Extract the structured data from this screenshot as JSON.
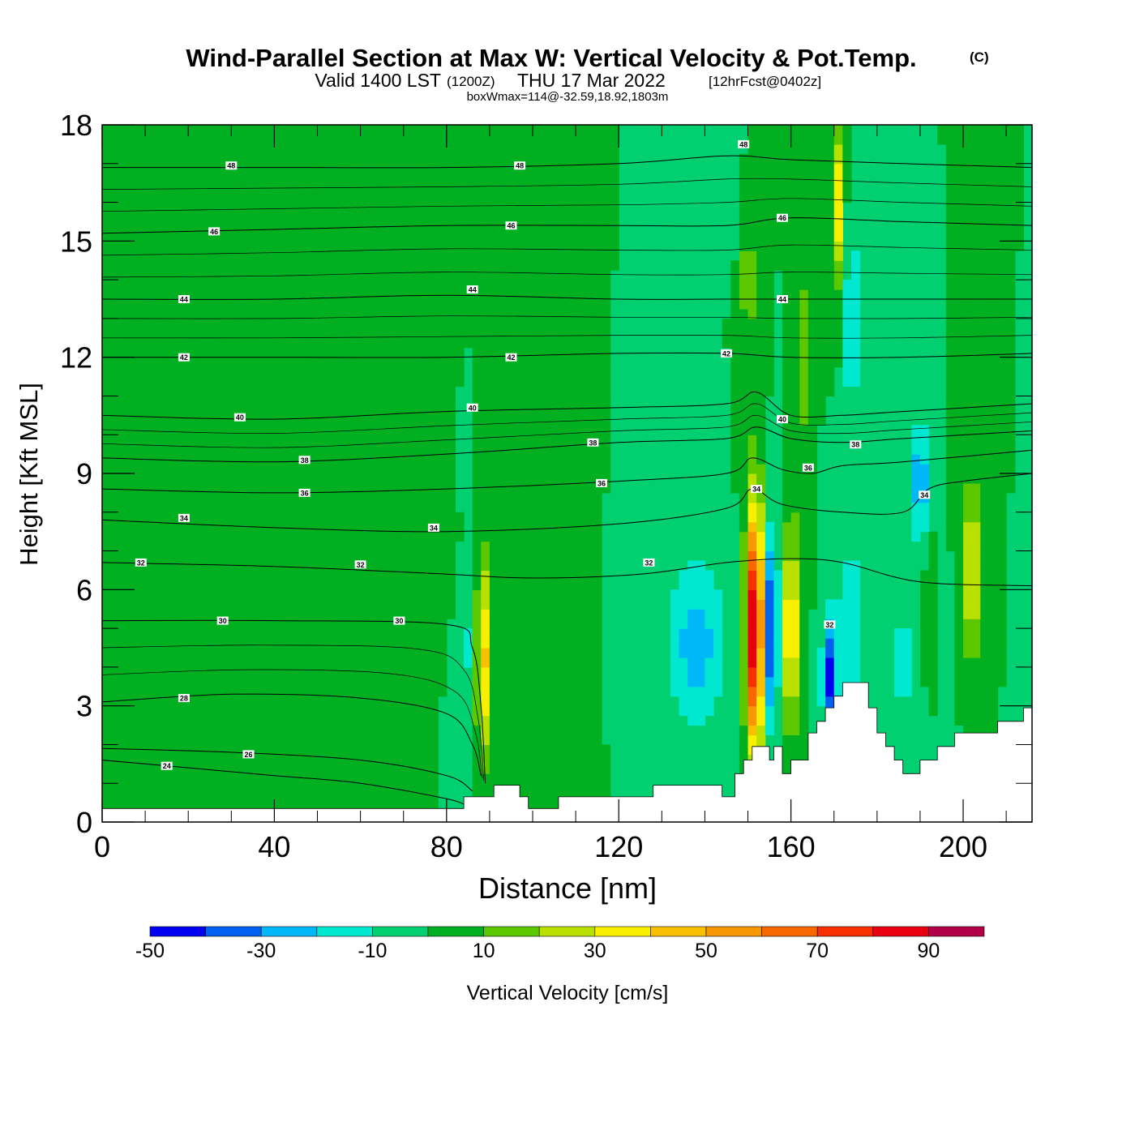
{
  "header": {
    "title": "Wind-Parallel Section at Max W: Vertical Velocity & Pot.Temp.",
    "copyright": "(C)",
    "valid_main": "Valid 1400 LST",
    "valid_zulu": "(1200Z)",
    "valid_date": "THU 17 Mar 2022",
    "forecast": "[12hrFcst@0402z]",
    "box_info": "boxWmax=114@-32.59,18.92,1803m"
  },
  "chart_data": {
    "type": "contour",
    "title": "Wind-Parallel Section at Max W: Vertical Velocity & Pot.Temp.",
    "xlabel": "Distance [nm]",
    "ylabel": "Height [Kft MSL]",
    "xlim": [
      0,
      216
    ],
    "ylim": [
      0,
      18
    ],
    "x_ticks": [
      0,
      40,
      80,
      120,
      160,
      200
    ],
    "y_ticks": [
      0,
      3,
      6,
      9,
      12,
      15,
      18
    ],
    "background_w_cms": 0,
    "w_features_cms": [
      {
        "x": 88.5,
        "y": 4.2,
        "halfwidth": 1.5,
        "halfheight": 2.6,
        "w": 45
      },
      {
        "x": 84.5,
        "y": 4.5,
        "halfwidth": 1.6,
        "halfheight": 2.2,
        "w": -12
      },
      {
        "x": 110,
        "y": 4.0,
        "halfwidth": 2.5,
        "halfheight": 3.0,
        "w": 3
      },
      {
        "x": 138,
        "y": 4.6,
        "halfwidth": 7.0,
        "halfheight": 2.2,
        "w": -25
      },
      {
        "x": 151.5,
        "y": 5.0,
        "halfwidth": 2.0,
        "halfheight": 3.2,
        "w": 95
      },
      {
        "x": 155.5,
        "y": 5.0,
        "halfwidth": 1.4,
        "halfheight": 2.5,
        "w": -48
      },
      {
        "x": 160,
        "y": 5.0,
        "halfwidth": 1.6,
        "halfheight": 2.6,
        "w": 48
      },
      {
        "x": 169,
        "y": 3.8,
        "halfwidth": 1.8,
        "halfheight": 1.6,
        "w": -42
      },
      {
        "x": 174,
        "y": 5.2,
        "halfwidth": 3.5,
        "halfheight": 2.4,
        "w": -16
      },
      {
        "x": 186,
        "y": 4.2,
        "halfwidth": 7.0,
        "halfheight": 2.2,
        "w": -12
      },
      {
        "x": 192,
        "y": 5.0,
        "halfwidth": 1.4,
        "halfheight": 2.0,
        "w": 18
      },
      {
        "x": 202,
        "y": 6.5,
        "halfwidth": 2.2,
        "halfheight": 2.2,
        "w": 35
      },
      {
        "x": 190,
        "y": 8.8,
        "halfwidth": 2.2,
        "halfheight": 1.6,
        "w": -28
      },
      {
        "x": 171,
        "y": 16.0,
        "halfwidth": 1.4,
        "halfheight": 2.0,
        "w": 38
      },
      {
        "x": 174,
        "y": 13.0,
        "halfwidth": 1.6,
        "halfheight": 3.0,
        "w": -20
      },
      {
        "x": 150,
        "y": 14.0,
        "halfwidth": 1.4,
        "halfheight": 3.0,
        "w": 18
      },
      {
        "x": 147,
        "y": 17.0,
        "halfwidth": 2.0,
        "halfheight": 1.2,
        "w": -10
      },
      {
        "x": 163,
        "y": 12.0,
        "halfwidth": 1.4,
        "halfheight": 4.0,
        "w": 12
      },
      {
        "x": 8,
        "y": 12.0,
        "halfwidth": 10.0,
        "halfheight": 5.0,
        "w": 6
      },
      {
        "x": 30,
        "y": 8.0,
        "halfwidth": 20.0,
        "halfheight": 2.0,
        "w": 6
      },
      {
        "x": 70,
        "y": 7.0,
        "halfwidth": 10.0,
        "halfheight": 1.0,
        "w": 6
      }
    ],
    "terrain_top_kft": [
      [
        0,
        0.35
      ],
      [
        84,
        0.35
      ],
      [
        84,
        0.65
      ],
      [
        91,
        0.65
      ],
      [
        91,
        0.95
      ],
      [
        97,
        0.95
      ],
      [
        97,
        0.65
      ],
      [
        99,
        0.65
      ],
      [
        99,
        0.35
      ],
      [
        106,
        0.35
      ],
      [
        106,
        0.65
      ],
      [
        128,
        0.65
      ],
      [
        128,
        0.95
      ],
      [
        144,
        0.95
      ],
      [
        144,
        0.65
      ],
      [
        147,
        0.65
      ],
      [
        147,
        1.25
      ],
      [
        149,
        1.25
      ],
      [
        149,
        1.6
      ],
      [
        151,
        1.6
      ],
      [
        151,
        1.95
      ],
      [
        155,
        1.95
      ],
      [
        155,
        1.6
      ],
      [
        156,
        1.6
      ],
      [
        156,
        1.95
      ],
      [
        158,
        1.95
      ],
      [
        158,
        1.25
      ],
      [
        160,
        1.25
      ],
      [
        160,
        1.6
      ],
      [
        162,
        1.6
      ],
      [
        162,
        1.6
      ],
      [
        164,
        1.6
      ],
      [
        164,
        2.3
      ],
      [
        166,
        2.3
      ],
      [
        166,
        2.6
      ],
      [
        168,
        2.6
      ],
      [
        168,
        2.95
      ],
      [
        170,
        2.95
      ],
      [
        170,
        3.25
      ],
      [
        172,
        3.25
      ],
      [
        172,
        3.6
      ],
      [
        178,
        3.6
      ],
      [
        178,
        2.95
      ],
      [
        180,
        2.95
      ],
      [
        180,
        2.3
      ],
      [
        182,
        2.3
      ],
      [
        182,
        1.95
      ],
      [
        184,
        1.95
      ],
      [
        184,
        1.6
      ],
      [
        186,
        1.6
      ],
      [
        186,
        1.25
      ],
      [
        190,
        1.25
      ],
      [
        190,
        1.6
      ],
      [
        194,
        1.6
      ],
      [
        194,
        1.95
      ],
      [
        198,
        1.95
      ],
      [
        198,
        2.3
      ],
      [
        208,
        2.3
      ],
      [
        208,
        2.6
      ],
      [
        214,
        2.6
      ],
      [
        214,
        2.95
      ],
      [
        216,
        2.95
      ]
    ],
    "theta_isentropes": [
      {
        "label": "24",
        "points": [
          [
            0,
            1.6
          ],
          [
            20,
            1.4
          ],
          [
            40,
            1.2
          ],
          [
            60,
            1.0
          ],
          [
            80,
            0.6
          ],
          [
            85,
            0.4
          ]
        ]
      },
      {
        "label": "26",
        "points": [
          [
            0,
            1.9
          ],
          [
            30,
            1.8
          ],
          [
            60,
            1.6
          ],
          [
            80,
            1.2
          ],
          [
            86,
            0.8
          ]
        ]
      },
      {
        "label": "28",
        "points": [
          [
            0,
            3.1
          ],
          [
            30,
            3.3
          ],
          [
            60,
            3.2
          ],
          [
            80,
            2.8
          ],
          [
            86,
            2.0
          ],
          [
            88,
            1.2
          ]
        ]
      },
      {
        "label": "30",
        "points": [
          [
            0,
            5.2
          ],
          [
            40,
            5.2
          ],
          [
            80,
            5.1
          ],
          [
            86,
            4.5
          ],
          [
            88,
            3.0
          ],
          [
            89,
            1.0
          ]
        ]
      },
      {
        "label": "32",
        "points": [
          [
            0,
            6.7
          ],
          [
            40,
            6.6
          ],
          [
            80,
            6.4
          ],
          [
            100,
            6.3
          ],
          [
            125,
            6.4
          ],
          [
            145,
            6.7
          ],
          [
            160,
            6.8
          ],
          [
            172,
            6.7
          ],
          [
            190,
            6.2
          ],
          [
            216,
            6.1
          ]
        ]
      },
      {
        "label": "34",
        "points": [
          [
            0,
            7.8
          ],
          [
            40,
            7.6
          ],
          [
            80,
            7.5
          ],
          [
            120,
            7.7
          ],
          [
            145,
            8.1
          ],
          [
            151,
            8.6
          ],
          [
            158,
            8.2
          ],
          [
            172,
            8.0
          ],
          [
            186,
            8.0
          ],
          [
            192,
            8.6
          ],
          [
            200,
            8.8
          ],
          [
            216,
            9.0
          ]
        ]
      },
      {
        "label": "36",
        "points": [
          [
            0,
            8.6
          ],
          [
            40,
            8.5
          ],
          [
            80,
            8.6
          ],
          [
            120,
            8.8
          ],
          [
            145,
            9.0
          ],
          [
            151,
            9.4
          ],
          [
            158,
            9.1
          ],
          [
            165,
            9.0
          ],
          [
            172,
            9.2
          ],
          [
            186,
            9.3
          ],
          [
            216,
            9.6
          ]
        ]
      },
      {
        "label": "38",
        "points": [
          [
            0,
            9.4
          ],
          [
            40,
            9.3
          ],
          [
            80,
            9.5
          ],
          [
            120,
            9.8
          ],
          [
            145,
            9.9
          ],
          [
            152,
            10.2
          ],
          [
            160,
            9.9
          ],
          [
            172,
            9.8
          ],
          [
            186,
            9.9
          ],
          [
            216,
            10.1
          ]
        ]
      },
      {
        "label": "40",
        "points": [
          [
            0,
            10.5
          ],
          [
            40,
            10.4
          ],
          [
            80,
            10.6
          ],
          [
            120,
            10.7
          ],
          [
            145,
            10.8
          ],
          [
            152,
            11.1
          ],
          [
            160,
            10.5
          ],
          [
            172,
            10.5
          ],
          [
            186,
            10.6
          ],
          [
            216,
            10.8
          ]
        ]
      },
      {
        "label": "42",
        "points": [
          [
            0,
            12.0
          ],
          [
            40,
            12.0
          ],
          [
            80,
            12.0
          ],
          [
            120,
            12.1
          ],
          [
            145,
            12.1
          ],
          [
            160,
            12.0
          ],
          [
            186,
            12.0
          ],
          [
            216,
            12.1
          ]
        ]
      },
      {
        "label": "44",
        "points": [
          [
            0,
            13.5
          ],
          [
            40,
            13.5
          ],
          [
            80,
            13.6
          ],
          [
            120,
            13.5
          ],
          [
            145,
            13.5
          ],
          [
            160,
            13.5
          ],
          [
            186,
            13.5
          ],
          [
            216,
            13.5
          ]
        ]
      },
      {
        "label": "46",
        "points": [
          [
            0,
            15.2
          ],
          [
            40,
            15.3
          ],
          [
            80,
            15.4
          ],
          [
            120,
            15.4
          ],
          [
            145,
            15.4
          ],
          [
            160,
            15.6
          ],
          [
            186,
            15.5
          ],
          [
            216,
            15.4
          ]
        ]
      },
      {
        "label": "48",
        "points": [
          [
            0,
            16.9
          ],
          [
            40,
            16.9
          ],
          [
            80,
            16.9
          ],
          [
            120,
            17.0
          ],
          [
            145,
            17.2
          ],
          [
            160,
            17.1
          ],
          [
            186,
            17.0
          ],
          [
            216,
            16.9
          ]
        ]
      }
    ],
    "theta_label_marks": [
      {
        "label": "48",
        "x": 30,
        "y": 16.95
      },
      {
        "label": "48",
        "x": 97,
        "y": 16.95
      },
      {
        "label": "48",
        "x": 149,
        "y": 17.5
      },
      {
        "label": "46",
        "x": 26,
        "y": 15.25
      },
      {
        "label": "46",
        "x": 95,
        "y": 15.4
      },
      {
        "label": "46",
        "x": 158,
        "y": 15.6
      },
      {
        "label": "44",
        "x": 19,
        "y": 13.5
      },
      {
        "label": "44",
        "x": 86,
        "y": 13.75
      },
      {
        "label": "44",
        "x": 158,
        "y": 13.5
      },
      {
        "label": "42",
        "x": 19,
        "y": 12.0
      },
      {
        "label": "42",
        "x": 95,
        "y": 12.0
      },
      {
        "label": "42",
        "x": 145,
        "y": 12.1
      },
      {
        "label": "40",
        "x": 32,
        "y": 10.45
      },
      {
        "label": "40",
        "x": 86,
        "y": 10.7
      },
      {
        "label": "40",
        "x": 158,
        "y": 10.4
      },
      {
        "label": "38",
        "x": 47,
        "y": 9.35
      },
      {
        "label": "38",
        "x": 114,
        "y": 9.8
      },
      {
        "label": "38",
        "x": 175,
        "y": 9.75
      },
      {
        "label": "36",
        "x": 47,
        "y": 8.5
      },
      {
        "label": "36",
        "x": 116,
        "y": 8.75
      },
      {
        "label": "36",
        "x": 164,
        "y": 9.15
      },
      {
        "label": "34",
        "x": 19,
        "y": 7.85
      },
      {
        "label": "34",
        "x": 77,
        "y": 7.6
      },
      {
        "label": "34",
        "x": 152,
        "y": 8.6
      },
      {
        "label": "34",
        "x": 191,
        "y": 8.45
      },
      {
        "label": "32",
        "x": 9,
        "y": 6.7
      },
      {
        "label": "32",
        "x": 60,
        "y": 6.65
      },
      {
        "label": "32",
        "x": 127,
        "y": 6.7
      },
      {
        "label": "32",
        "x": 169,
        "y": 5.1
      },
      {
        "label": "30",
        "x": 28,
        "y": 5.2
      },
      {
        "label": "30",
        "x": 69,
        "y": 5.2
      },
      {
        "label": "28",
        "x": 19,
        "y": 3.2
      },
      {
        "label": "26",
        "x": 34,
        "y": 1.75
      },
      {
        "label": "24",
        "x": 15,
        "y": 1.45
      }
    ],
    "colorbar": {
      "title": "Vertical Velocity [cm/s]",
      "bounds": [
        -50,
        -40,
        -30,
        -20,
        -10,
        0,
        10,
        20,
        30,
        40,
        50,
        60,
        70,
        80,
        90,
        100
      ],
      "colors": [
        "#0000f0",
        "#0060f0",
        "#00b8f8",
        "#00e8d0",
        "#00d070",
        "#00b020",
        "#5cc800",
        "#b8e000",
        "#f8f000",
        "#f8c000",
        "#f89800",
        "#f86800",
        "#f83000",
        "#e80010",
        "#b00048"
      ],
      "tick_labels": [
        "-50",
        "-30",
        "-10",
        "10",
        "30",
        "50",
        "70",
        "90"
      ],
      "tick_values": [
        -50,
        -30,
        -10,
        10,
        30,
        50,
        70,
        90
      ]
    }
  }
}
